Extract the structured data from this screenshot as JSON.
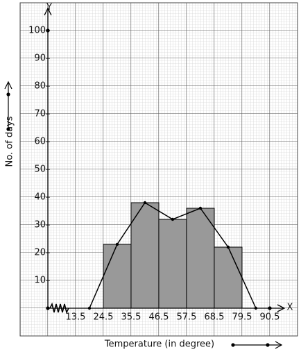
{
  "chart_data": {
    "type": "histogram",
    "x_label": "Temperature (in degree)",
    "y_label": "No. of days",
    "x_axis_name": "X",
    "y_axis_name": "Y",
    "bins": [
      13.5,
      24.5,
      35.5,
      46.5,
      57.5,
      68.5,
      79.5,
      90.5
    ],
    "counts": [
      0,
      23,
      38,
      32,
      36,
      22,
      0
    ],
    "color": "#999999",
    "frequency_polygon": {
      "x": [
        19,
        30,
        41,
        52,
        63,
        74,
        85
      ],
      "values": [
        0,
        23,
        38,
        32,
        36,
        22,
        0
      ],
      "color": "#000000"
    },
    "xlim": [
      2.5,
      96.3
    ],
    "ylim": [
      0,
      108
    ],
    "yticks": [
      10,
      20,
      30,
      40,
      50,
      60,
      70,
      80,
      90,
      100
    ],
    "grid": true
  }
}
